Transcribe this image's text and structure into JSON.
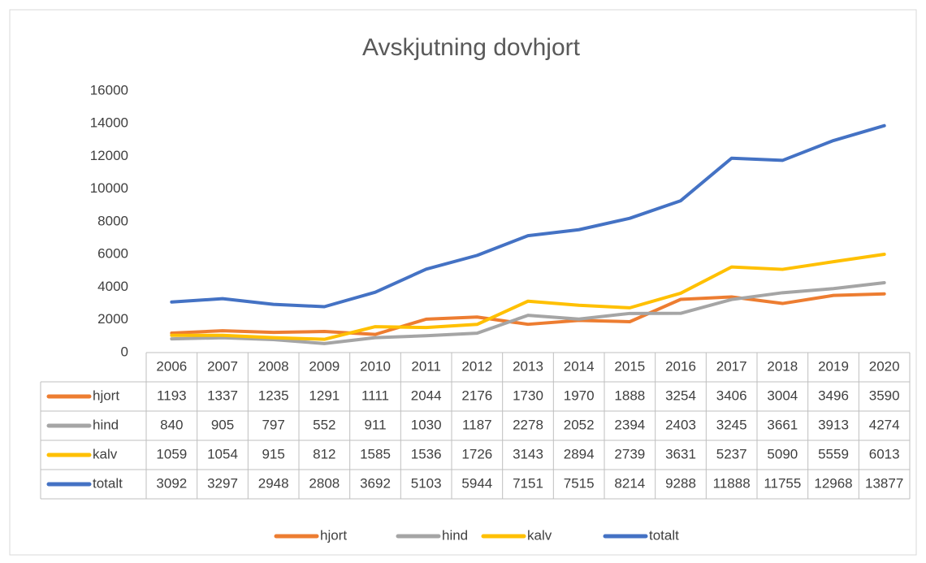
{
  "chart_data": {
    "type": "line",
    "title": "Avskjutning dovhjort",
    "categories": [
      "2006",
      "2007",
      "2008",
      "2009",
      "2010",
      "2011",
      "2012",
      "2013",
      "2014",
      "2015",
      "2016",
      "2017",
      "2018",
      "2019",
      "2020"
    ],
    "series": [
      {
        "name": "hjort",
        "color": "#ed7d31",
        "values": [
          1193,
          1337,
          1235,
          1291,
          1111,
          2044,
          2176,
          1730,
          1970,
          1888,
          3254,
          3406,
          3004,
          3496,
          3590
        ]
      },
      {
        "name": "hind",
        "color": "#a5a5a5",
        "values": [
          840,
          905,
          797,
          552,
          911,
          1030,
          1187,
          2278,
          2052,
          2394,
          2403,
          3245,
          3661,
          3913,
          4274
        ]
      },
      {
        "name": "kalv",
        "color": "#ffc000",
        "values": [
          1059,
          1054,
          915,
          812,
          1585,
          1536,
          1726,
          3143,
          2894,
          2739,
          3631,
          5237,
          5090,
          5559,
          6013
        ]
      },
      {
        "name": "totalt",
        "color": "#4472c4",
        "values": [
          3092,
          3297,
          2948,
          2808,
          3692,
          5103,
          5944,
          7151,
          7515,
          8214,
          9288,
          11888,
          11755,
          12968,
          13877
        ]
      }
    ],
    "ylim": [
      0,
      16000
    ],
    "yticks": [
      0,
      2000,
      4000,
      6000,
      8000,
      10000,
      12000,
      14000,
      16000
    ],
    "grid": false,
    "legend": "bottom"
  }
}
